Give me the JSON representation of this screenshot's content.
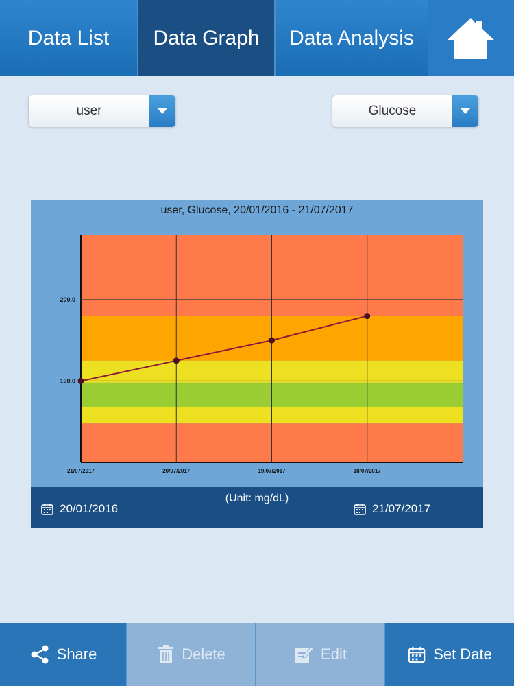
{
  "tabs": {
    "data_list": "Data List",
    "data_graph": "Data Graph",
    "data_analysis": "Data Analysis"
  },
  "home_icon": "house-icon",
  "filters": {
    "user": "user",
    "metric": "Glucose"
  },
  "chart_data": {
    "type": "line",
    "title": "user, Glucose, 20/01/2016 - 21/07/2017",
    "x_categories": [
      "21/07/2017",
      "20/07/2017",
      "19/07/2017",
      "18/07/2017"
    ],
    "values": [
      100.0,
      125.0,
      150.0,
      180.0
    ],
    "y_ticks": [
      "100.0",
      "200.0"
    ],
    "ylim": [
      0,
      280
    ],
    "unit_label": "(Unit: mg/dL)",
    "zones": [
      {
        "from": 0,
        "to": 48,
        "color": "#ff7a4a"
      },
      {
        "from": 48,
        "to": 68,
        "color": "#ede021"
      },
      {
        "from": 68,
        "to": 98,
        "color": "#9acd32"
      },
      {
        "from": 98,
        "to": 125,
        "color": "#ede021"
      },
      {
        "from": 125,
        "to": 180,
        "color": "#ffa500"
      },
      {
        "from": 180,
        "to": 280,
        "color": "#ff7a4a"
      }
    ],
    "line_color": "#8b1a3a",
    "grid": true
  },
  "dates": {
    "start": "20/01/2016",
    "end": "21/07/2017"
  },
  "bottom": {
    "share": "Share",
    "delete": "Delete",
    "edit": "Edit",
    "set_date": "Set Date"
  }
}
